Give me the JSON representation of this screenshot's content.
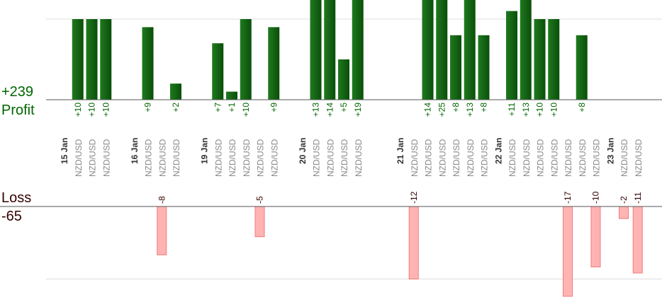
{
  "summary": {
    "profit_label": "Profit",
    "profit_total": "+239",
    "loss_label": "Loss",
    "loss_total": "-65"
  },
  "colors": {
    "profit_bar": "#0b5d0b",
    "profit_text": "#006600",
    "loss_bar": "#ffb3b3",
    "loss_text": "#330000",
    "day_label": "#333333",
    "pair_label": "#888888",
    "gridline": "#dddddd",
    "axis": "#555555"
  },
  "chart_data": {
    "type": "bar",
    "ylim_profit": [
      0,
      12
    ],
    "ylim_loss": [
      -12,
      0
    ],
    "note_values_clipped": "bars with value above the top gridline are clipped at the top edge",
    "days": [
      {
        "label": "15 Jan",
        "slot": 0
      },
      {
        "label": "16 Jan",
        "slot": 5
      },
      {
        "label": "19 Jan",
        "slot": 10
      },
      {
        "label": "20 Jan",
        "slot": 17
      },
      {
        "label": "21 Jan",
        "slot": 24
      },
      {
        "label": "22 Jan",
        "slot": 31
      },
      {
        "label": "23 Jan",
        "slot": 39
      }
    ],
    "pairs": [
      {
        "slot": 1,
        "pair": "NZD/USD",
        "profit": 10,
        "label": "+10"
      },
      {
        "slot": 2,
        "pair": "NZD/USD",
        "profit": 10,
        "label": "+10"
      },
      {
        "slot": 3,
        "pair": "NZD/USD",
        "profit": 10,
        "label": "+10"
      },
      {
        "slot": 6,
        "pair": "NZD/USD",
        "profit": 9,
        "label": "+9"
      },
      {
        "slot": 7,
        "pair": "NZD/USD",
        "loss": -8,
        "label": "-8"
      },
      {
        "slot": 8,
        "pair": "NZD/USD",
        "profit": 2,
        "label": "+2"
      },
      {
        "slot": 11,
        "pair": "NZD/USD",
        "profit": 7,
        "label": "+7"
      },
      {
        "slot": 12,
        "pair": "NZD/USD",
        "profit": 1,
        "label": "+1"
      },
      {
        "slot": 13,
        "pair": "NZD/USD",
        "profit": 10,
        "label": "+10"
      },
      {
        "slot": 14,
        "pair": "NZD/USD",
        "loss": -5,
        "label": "-5"
      },
      {
        "slot": 15,
        "pair": "NZD/USD",
        "profit": 9,
        "label": "+9"
      },
      {
        "slot": 18,
        "pair": "NZD/USD",
        "profit": 13,
        "label": "+13"
      },
      {
        "slot": 19,
        "pair": "NZD/USD",
        "profit": 14,
        "label": "+14"
      },
      {
        "slot": 20,
        "pair": "NZD/USD",
        "profit": 5,
        "label": "+5"
      },
      {
        "slot": 21,
        "pair": "NZD/USD",
        "profit": 19,
        "label": "+19"
      },
      {
        "slot": 25,
        "pair": "NZD/USD",
        "loss": -12,
        "label": "-12"
      },
      {
        "slot": 26,
        "pair": "NZD/USD",
        "profit": 14,
        "label": "+14"
      },
      {
        "slot": 27,
        "pair": "NZD/USD",
        "profit": 25,
        "label": "+25"
      },
      {
        "slot": 28,
        "pair": "NZD/USD",
        "profit": 8,
        "label": "+8"
      },
      {
        "slot": 29,
        "pair": "NZD/USD",
        "profit": 13,
        "label": "+13"
      },
      {
        "slot": 30,
        "pair": "NZD/USD",
        "profit": 8,
        "label": "+8"
      },
      {
        "slot": 32,
        "pair": "NZD/USD",
        "profit": 11,
        "label": "+11"
      },
      {
        "slot": 33,
        "pair": "NZD/USD",
        "profit": 13,
        "label": "+13"
      },
      {
        "slot": 34,
        "pair": "NZD/USD",
        "profit": 10,
        "label": "+10"
      },
      {
        "slot": 35,
        "pair": "NZD/USD",
        "profit": 10,
        "label": "+10"
      },
      {
        "slot": 36,
        "pair": "NZD/USD",
        "loss": -17,
        "label": "-17"
      },
      {
        "slot": 37,
        "pair": "NZD/USD",
        "profit": 8,
        "label": "+8"
      },
      {
        "slot": 38,
        "pair": "NZD/USD",
        "loss": -10,
        "label": "-10"
      },
      {
        "slot": 40,
        "pair": "NZD/USD",
        "loss": -2,
        "label": "-2"
      },
      {
        "slot": 41,
        "pair": "NZD/USD",
        "loss": -11,
        "label": "-11"
      }
    ]
  }
}
